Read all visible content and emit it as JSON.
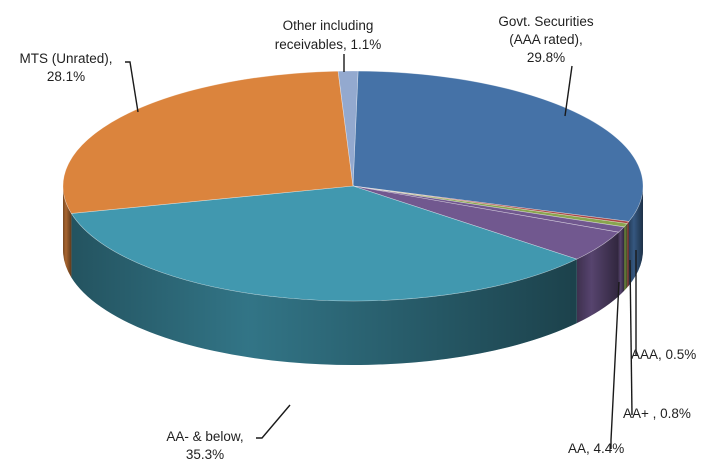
{
  "chart_data": {
    "type": "pie",
    "variant": "3d",
    "title": "",
    "unit": "%",
    "legend": "none",
    "slices": [
      {
        "key": "govt",
        "label_lines": [
          "Govt. Securities",
          "(AAA rated),",
          "29.8%"
        ],
        "value": 29.8,
        "color": "#4572A7"
      },
      {
        "key": "other1",
        "label_lines": [],
        "value": 0.3,
        "color": "#AA4643"
      },
      {
        "key": "aaa",
        "label_lines": [
          "AAA, 0.5%"
        ],
        "value": 0.5,
        "color": "#89A54E"
      },
      {
        "key": "aaplus",
        "label_lines": [
          "AA+ , 0.8%"
        ],
        "value": 0.8,
        "color": "#71588F"
      },
      {
        "key": "aa",
        "label_lines": [
          "AA, 4.4%"
        ],
        "value": 4.4,
        "color": "#71588F"
      },
      {
        "key": "aaminus",
        "label_lines": [
          "AA- & below,",
          "35.3%"
        ],
        "value": 35.3,
        "color": "#4198AF"
      },
      {
        "key": "mts",
        "label_lines": [
          "MTS (Unrated),",
          "28.1%"
        ],
        "value": 28.1,
        "color": "#DB843D"
      },
      {
        "key": "other",
        "label_lines": [
          "Other including",
          "receivables, 1.1%"
        ],
        "value": 1.1,
        "color": "#93A9CF"
      }
    ]
  }
}
